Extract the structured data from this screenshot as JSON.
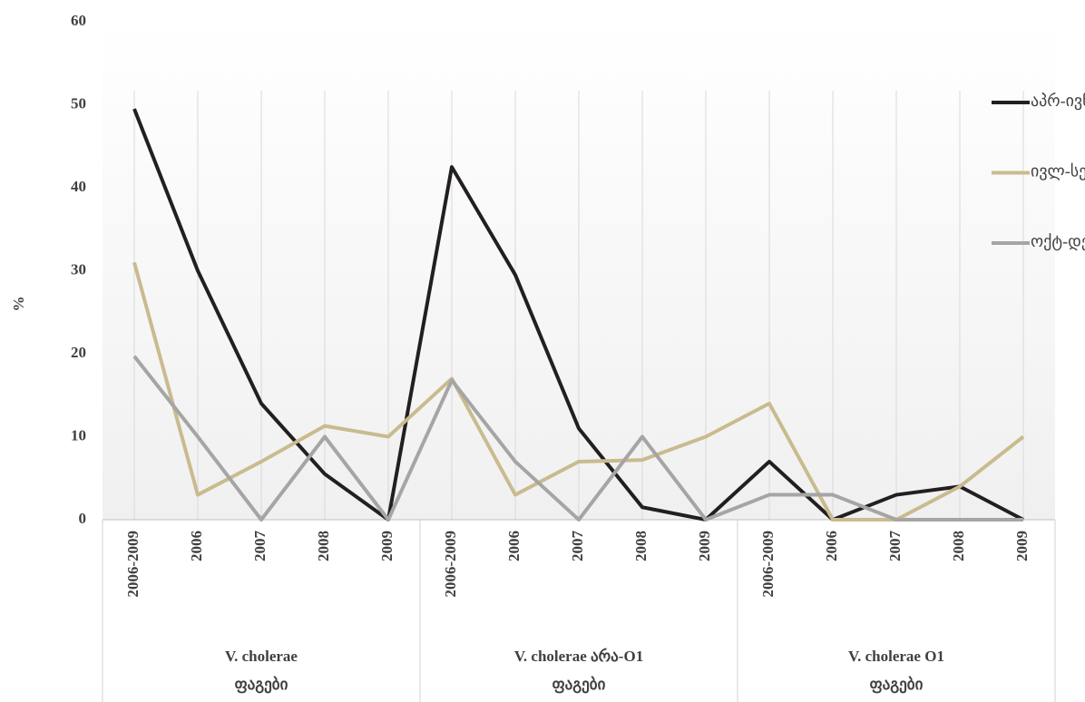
{
  "chart_data": {
    "type": "line",
    "y_label": "%",
    "categories": [
      "2006-2009",
      "2006",
      "2007",
      "2008",
      "2009",
      "2006-2009",
      "2006",
      "2007",
      "2008",
      "2009",
      "2006-2009",
      "2006",
      "2007",
      "2008",
      "2009"
    ],
    "groups": [
      {
        "label_lines": [
          "V. cholerae",
          "ფაგები"
        ],
        "span": 5
      },
      {
        "label_lines": [
          "V. cholerae არა-O1",
          "ფაგები"
        ],
        "span": 5
      },
      {
        "label_lines": [
          "V. cholerae O1",
          "ფაგები"
        ],
        "span": 5
      }
    ],
    "series": [
      {
        "name": "აპრ-ივნ",
        "color": "#231f20",
        "values": [
          49.5,
          30,
          14,
          5.5,
          0,
          42.5,
          29.5,
          11,
          1.5,
          0,
          7,
          0,
          3,
          4,
          0
        ]
      },
      {
        "name": "ივლ-სექტ",
        "color": "#c9bb8f",
        "values": [
          31,
          3,
          7,
          11.3,
          10,
          17,
          3,
          7,
          7.2,
          10,
          14,
          0,
          0,
          4,
          10
        ]
      },
      {
        "name": "ოქტ-დეკ",
        "color": "#a5a5a5",
        "values": [
          19.7,
          10,
          0,
          10,
          0,
          16.8,
          7,
          0,
          10,
          0,
          3,
          3,
          0,
          0,
          0
        ]
      }
    ],
    "ylim": [
      0,
      60
    ],
    "yticks": [
      0,
      10,
      20,
      30,
      40,
      50,
      60
    ],
    "legend": "right"
  }
}
